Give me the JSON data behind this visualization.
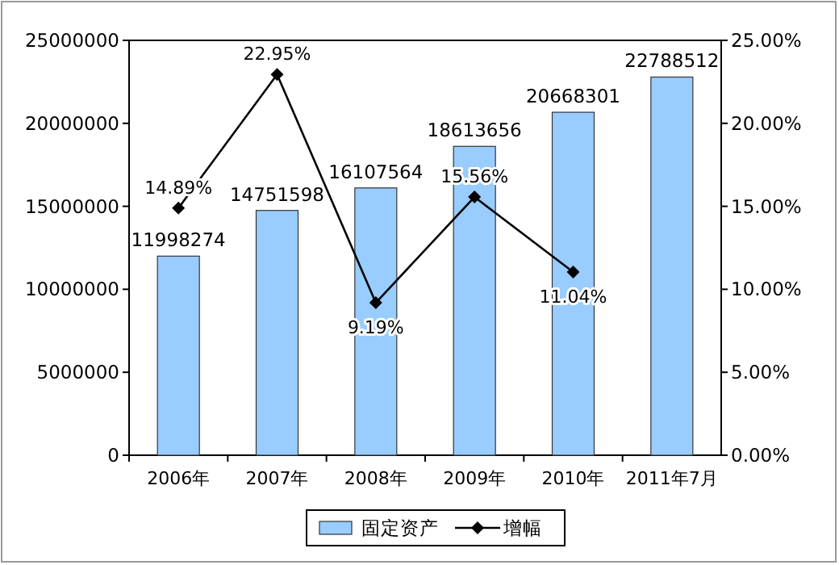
{
  "chart_data": {
    "type": "bar",
    "categories": [
      "2006年",
      "2007年",
      "2008年",
      "2009年",
      "2010年",
      "2011年7月"
    ],
    "series": [
      {
        "name": "固定资产",
        "color": "#99ccff",
        "values": [
          11998274,
          14751598,
          16107564,
          18613656,
          20668301,
          22788512
        ],
        "value_labels": [
          "11998274",
          "14751598",
          "16107564",
          "18613656",
          "20668301",
          "22788512"
        ]
      },
      {
        "name": "增幅",
        "type": "line",
        "color": "#000000",
        "axis": "y2",
        "marker": "diamond",
        "values": [
          14.89,
          22.95,
          9.19,
          15.56,
          11.04,
          null
        ],
        "value_labels": [
          "14.89%",
          "22.95%",
          "9.19%",
          "15.56%",
          "11.04%",
          null
        ]
      }
    ],
    "ylim": [
      0,
      25000000
    ],
    "yticks": [
      0,
      5000000,
      10000000,
      15000000,
      20000000,
      25000000
    ],
    "y2lim": [
      0,
      25
    ],
    "y2ticks": [
      {
        "value": 0,
        "label": "0.00%"
      },
      {
        "value": 5,
        "label": "5.00%"
      },
      {
        "value": 10,
        "label": "10.00%"
      },
      {
        "value": 15,
        "label": "15.00%"
      },
      {
        "value": 20,
        "label": "20.00%"
      },
      {
        "value": 25,
        "label": "25.00%"
      }
    ],
    "legend": "bottom"
  }
}
